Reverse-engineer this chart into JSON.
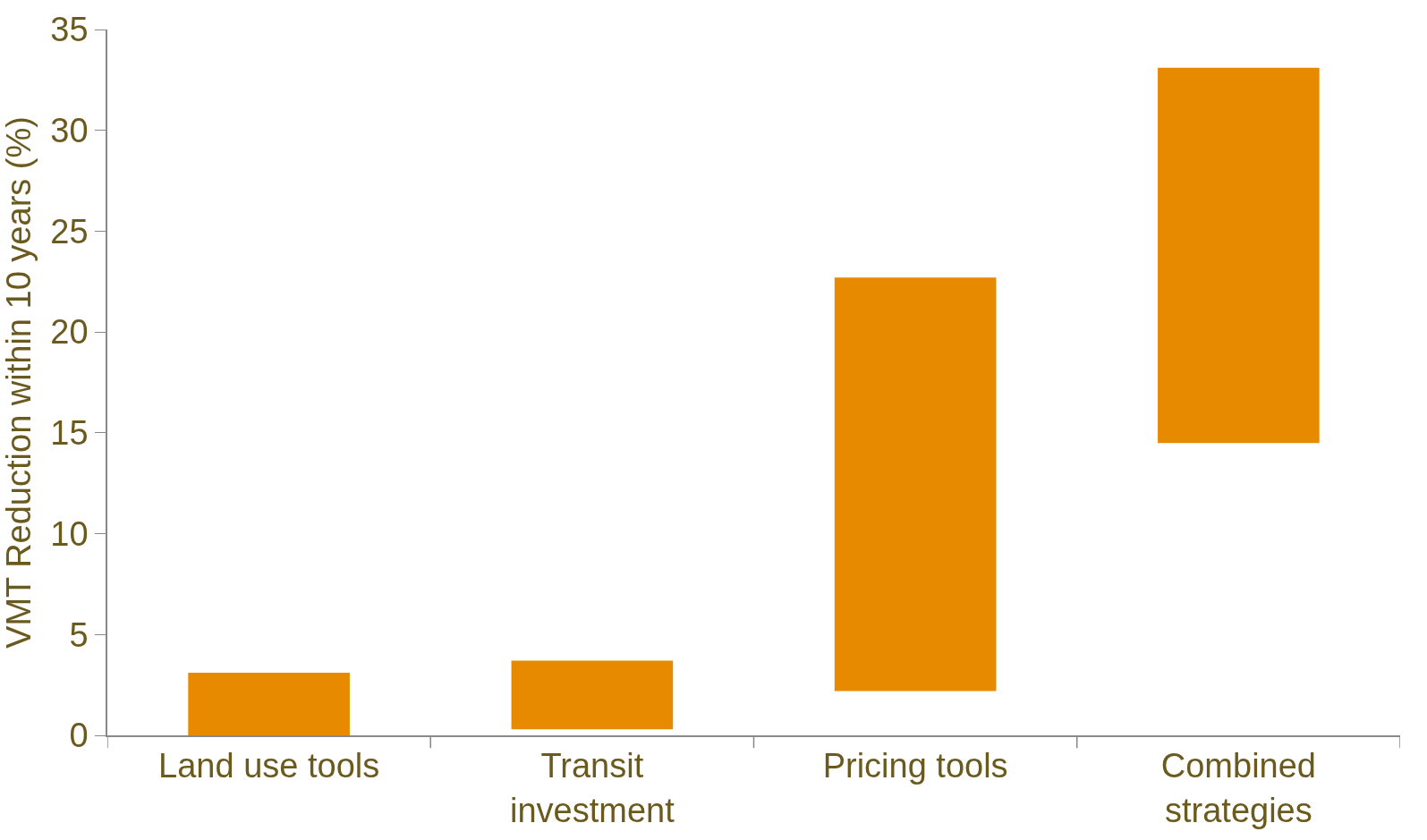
{
  "chart_data": {
    "type": "bar",
    "ylabel": "VMT Reduction within 10 years (%)",
    "categories": [
      "Land use tools",
      "Transit investment",
      "Pricing tools",
      "Combined strategies"
    ],
    "values": [
      3.1,
      3.4,
      20.5,
      18.6
    ],
    "base": [
      0,
      0.3,
      2.2,
      14.5
    ],
    "color": "#e88a00",
    "ylim": [
      0,
      35
    ],
    "yticks": [
      0,
      5,
      10,
      15,
      20,
      25,
      30,
      35
    ]
  }
}
